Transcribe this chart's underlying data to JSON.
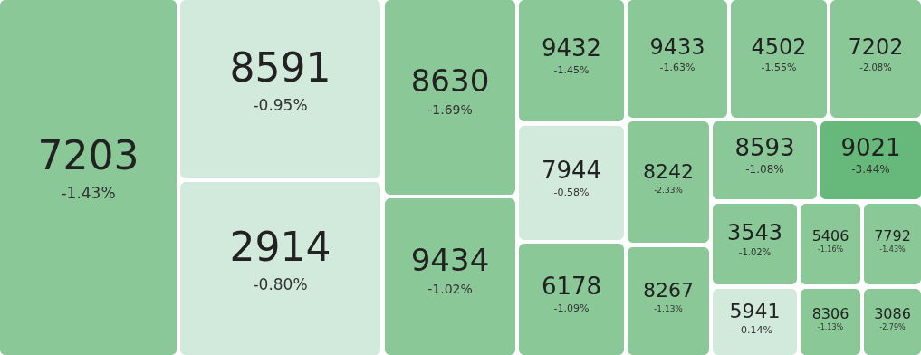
{
  "chart_data": {
    "type": "other",
    "categories": [
      "7203",
      "8591",
      "2914",
      "8630",
      "9434",
      "9432",
      "9433",
      "4502",
      "7202",
      "7944",
      "6178",
      "8242",
      "8267",
      "8593",
      "9021",
      "3543",
      "5406",
      "7792",
      "5941",
      "8306",
      "3086"
    ],
    "values": [
      -1.43,
      -0.95,
      -0.8,
      -1.69,
      -1.02,
      -1.45,
      -1.63,
      -1.55,
      -2.08,
      -0.58,
      -1.09,
      -2.33,
      -1.13,
      -1.08,
      -3.44,
      -1.02,
      -1.16,
      -1.43,
      -0.14,
      -1.13,
      -2.79
    ],
    "value_labels": [
      "-1.43%",
      "-0.95%",
      "-0.80%",
      "-1.69%",
      "-1.02%",
      "-1.45%",
      "-1.63%",
      "-1.55%",
      "-2.08%",
      "-0.58%",
      "-1.09%",
      "-2.33%",
      "-1.13%",
      "-1.08%",
      "-3.44%",
      "-1.02%",
      "-1.16%",
      "-1.43%",
      "-0.14%",
      "-1.13%",
      "-2.79%"
    ],
    "colors": [
      "#8ac898",
      "#d2eadb",
      "#d2eadb",
      "#8ac898",
      "#8ac898",
      "#8ac898",
      "#8ac898",
      "#8ac898",
      "#8ac898",
      "#d2eadb",
      "#8ac898",
      "#8ac898",
      "#8ac898",
      "#8ac898",
      "#66b97a",
      "#8ac898",
      "#8ac898",
      "#8ac898",
      "#d2eadb",
      "#8ac898",
      "#8ac898"
    ]
  }
}
